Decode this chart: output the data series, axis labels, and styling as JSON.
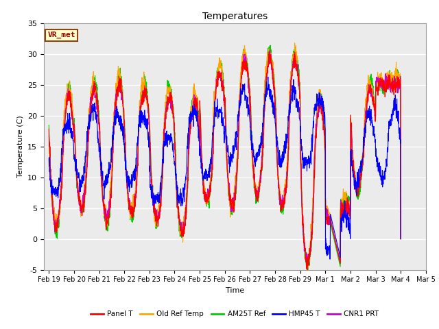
{
  "title": "Temperatures",
  "xlabel": "Time",
  "ylabel": "Temperature (C)",
  "ylim": [
    -5,
    35
  ],
  "series_colors": {
    "Panel T": "#ff0000",
    "Old Ref Temp": "#ffa500",
    "AM25T Ref": "#00cc00",
    "HMP45 T": "#0000ff",
    "CNR1 PRT": "#cc00cc"
  },
  "legend_labels": [
    "Panel T",
    "Old Ref Temp",
    "AM25T Ref",
    "HMP45 T",
    "CNR1 PRT"
  ],
  "xtick_labels": [
    "Feb 19",
    "Feb 20",
    "Feb 21",
    "Feb 22",
    "Feb 23",
    "Feb 24",
    "Feb 25",
    "Feb 26",
    "Feb 27",
    "Feb 28",
    "Feb 29",
    "Mar 1",
    "Mar 2",
    "Mar 3",
    "Mar 4",
    "Mar 5"
  ],
  "vr_met_label": "VR_met",
  "bg_color": "#ebebeb",
  "grid_color": "#ffffff",
  "fig_bg": "#ffffff",
  "linewidth": 0.8,
  "daily_highs": [
    23,
    24,
    25,
    24,
    23,
    22,
    27,
    29,
    29,
    29,
    22,
    5,
    24,
    25
  ],
  "daily_lows": [
    2,
    5,
    3,
    4,
    3,
    1,
    6,
    5,
    7,
    5,
    -4,
    3,
    8,
    25
  ],
  "hmp45_highs": [
    19,
    21,
    20,
    20,
    17,
    21,
    21,
    24,
    24,
    24,
    23,
    4,
    20,
    21
  ],
  "hmp45_lows": [
    7,
    9,
    9,
    9,
    6,
    6,
    10,
    13,
    13,
    13,
    12,
    -3,
    9,
    10
  ]
}
